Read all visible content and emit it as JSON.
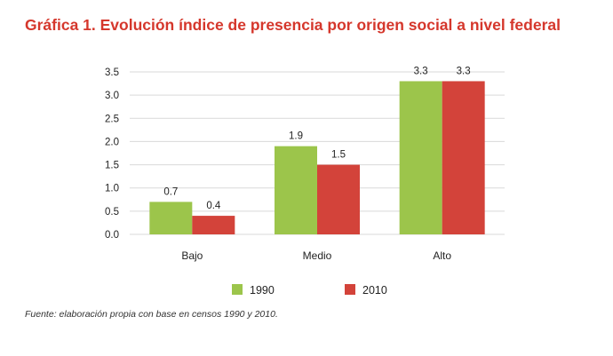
{
  "title": "Gráfica 1. Evolución índice de presencia por origen social a nivel federal",
  "source": "Fuente: elaboración propia con base en censos 1990 y 2010.",
  "colors": {
    "title": "#d5372c",
    "series_1990": "#9cc54b",
    "series_2010": "#d3433a",
    "grid": "#d9d9d9"
  },
  "chart_data": {
    "type": "bar",
    "categories": [
      "Bajo",
      "Medio",
      "Alto"
    ],
    "series": [
      {
        "name": "1990",
        "values": [
          0.7,
          1.9,
          3.3
        ],
        "labels": [
          "0.7",
          "1.9",
          "3.3"
        ]
      },
      {
        "name": "2010",
        "values": [
          0.4,
          1.5,
          3.3
        ],
        "labels": [
          "0.4",
          "1.5",
          "3.3"
        ]
      }
    ],
    "yticks": [
      "0.0",
      "0.5",
      "1.0",
      "1.5",
      "2.0",
      "2.5",
      "3.0",
      "3.5"
    ],
    "ylim": [
      0,
      3.5
    ],
    "grid": true,
    "legend": "bottom"
  }
}
